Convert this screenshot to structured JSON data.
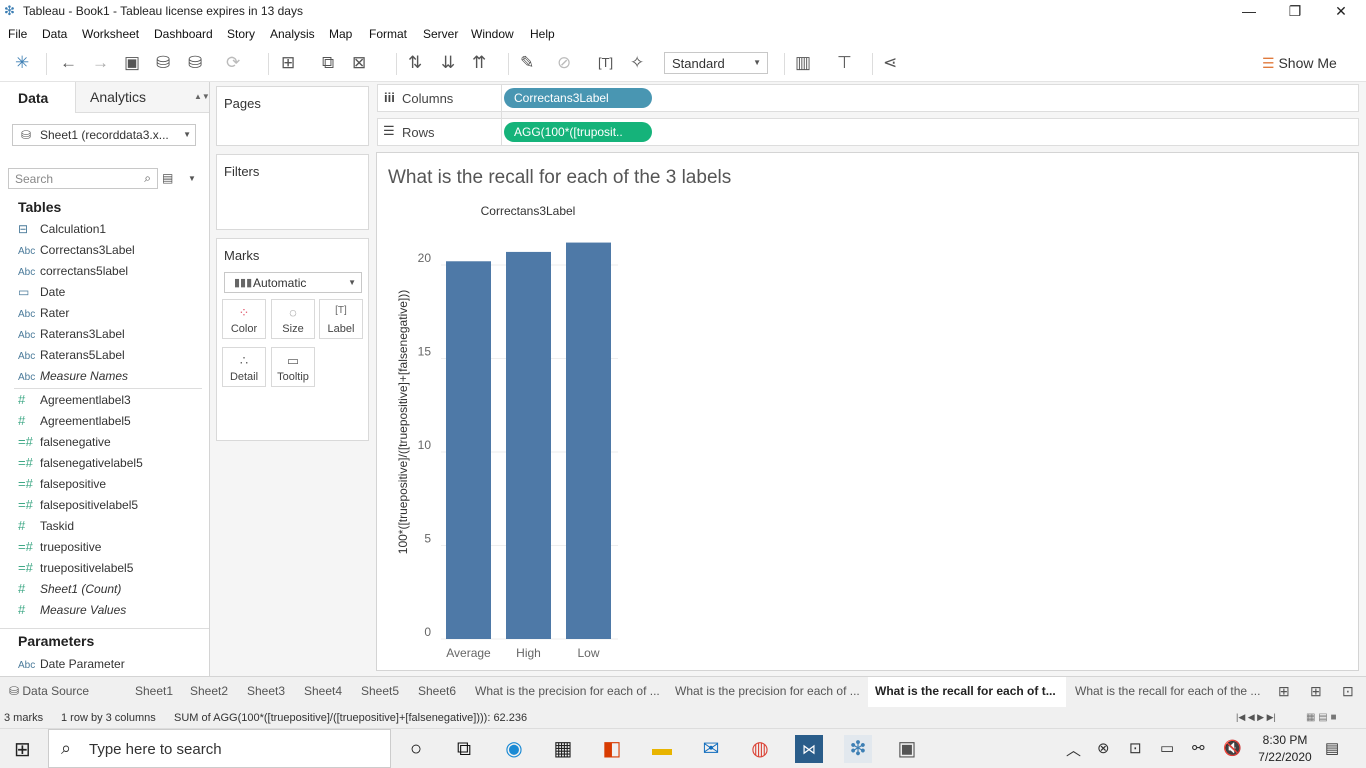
{
  "window": {
    "title": "Tableau - Book1 - Tableau license expires in 13 days",
    "minimize": "—",
    "restore": "❐",
    "close": "✕"
  },
  "menu": [
    "File",
    "Data",
    "Worksheet",
    "Dashboard",
    "Story",
    "Analysis",
    "Map",
    "Format",
    "Server",
    "Window",
    "Help"
  ],
  "toolbar": {
    "fit_select": "Standard",
    "show_me": "Show Me"
  },
  "left_pane": {
    "tab_data": "Data",
    "tab_analytics": "Analytics",
    "datasource": "Sheet1 (recorddata3.x...",
    "search_placeholder": "Search",
    "tables_heading": "Tables",
    "fields": [
      {
        "icon": "calc",
        "label": "Calculation1"
      },
      {
        "icon": "Abc",
        "label": "Correctans3Label"
      },
      {
        "icon": "Abc",
        "label": "correctans5label"
      },
      {
        "icon": "date",
        "label": "Date"
      },
      {
        "icon": "Abc",
        "label": "Rater"
      },
      {
        "icon": "Abc",
        "label": "Raterans3Label"
      },
      {
        "icon": "Abc",
        "label": "Raterans5Label"
      },
      {
        "icon": "Abc",
        "label": "Measure Names"
      },
      {
        "icon": "#",
        "label": "Agreementlabel3"
      },
      {
        "icon": "#",
        "label": "Agreementlabel5"
      },
      {
        "icon": "=#",
        "label": "falsenegative"
      },
      {
        "icon": "=#",
        "label": "falsenegativelabel5"
      },
      {
        "icon": "=#",
        "label": "falsepositive"
      },
      {
        "icon": "=#",
        "label": "falsepositivelabel5"
      },
      {
        "icon": "#",
        "label": "Taskid"
      },
      {
        "icon": "=#",
        "label": "truepositive"
      },
      {
        "icon": "=#",
        "label": "truepositivelabel5"
      },
      {
        "icon": "#",
        "label": "Sheet1 (Count)"
      },
      {
        "icon": "#",
        "label": "Measure Values"
      }
    ],
    "parameters_heading": "Parameters",
    "parameter": {
      "icon": "Abc",
      "label": "Date Parameter"
    }
  },
  "cards": {
    "pages": "Pages",
    "filters": "Filters",
    "marks": "Marks",
    "mark_type": "Automatic",
    "mark_buttons": [
      "Color",
      "Size",
      "Label",
      "Detail",
      "Tooltip"
    ]
  },
  "shelves": {
    "columns_label": "Columns",
    "columns_pill": "Correctans3Label",
    "rows_label": "Rows",
    "rows_pill": "AGG(100*([truposit.."
  },
  "sheet_title": "What is the recall for each of the 3 labels",
  "chart_data": {
    "type": "bar",
    "title": "What is the recall for each of the 3 labels",
    "header": "Correctans3Label",
    "categories": [
      "Average",
      "High",
      "Low"
    ],
    "values": [
      20.2,
      20.7,
      21.2
    ],
    "ylabel": "100*([truepositive]/([truepositive]+[falsenegative]))",
    "yticks": [
      0,
      5,
      10,
      15,
      20
    ],
    "ylim": [
      0,
      22.3
    ],
    "bar_color": "#4e79a7"
  },
  "sheet_tabs": {
    "data_source": "Data Source",
    "tabs": [
      "Sheet1",
      "Sheet2",
      "Sheet3",
      "Sheet4",
      "Sheet5",
      "Sheet6",
      "What is the precision for each of ...",
      "What is the precision for each of ...",
      "What is the recall for each of t...",
      "What is the recall for each of the ..."
    ],
    "active_index": 8
  },
  "status": {
    "marks": "3 marks",
    "rows_cols": "1 row by 3 columns",
    "sum": "SUM of AGG(100*([truepositive]/([truepositive]+[falsenegative]))): 62.236"
  },
  "taskbar": {
    "search_placeholder": "Type here to search",
    "time": "8:30 PM",
    "date": "7/22/2020"
  },
  "colors": {
    "accent_blue_pill": "#4996b2",
    "green_pill": "#15b37a",
    "bar": "#4e79a7"
  }
}
